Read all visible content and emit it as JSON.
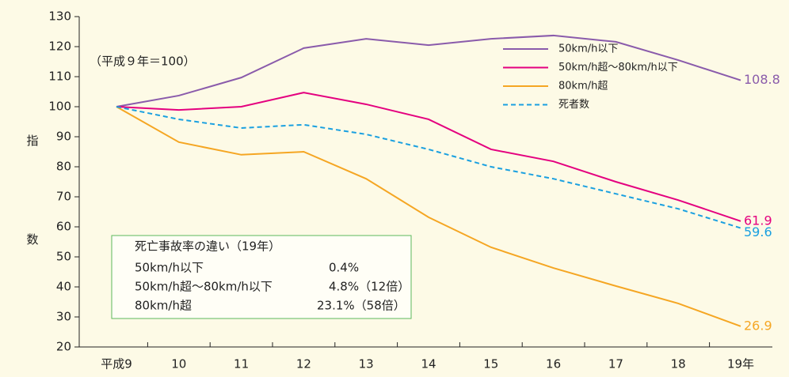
{
  "chart_data": {
    "type": "line",
    "categories": [
      "平成9",
      "10",
      "11",
      "12",
      "13",
      "14",
      "15",
      "16",
      "17",
      "18",
      "19年"
    ],
    "ylim": [
      20,
      130
    ],
    "yticks": [
      20,
      30,
      40,
      50,
      60,
      70,
      80,
      90,
      100,
      110,
      120,
      130
    ],
    "ylabel": "指数",
    "annotation": "（平成９年＝100）",
    "legend": "upper right",
    "series": [
      {
        "name": "50km/h以下",
        "color": "#8a5bab",
        "dashed": false,
        "values": [
          100,
          103.7,
          109.7,
          119.5,
          122.6,
          120.5,
          122.6,
          123.7,
          121.6,
          115.5,
          108.8
        ]
      },
      {
        "name": "50km/h超～80km/h以下",
        "color": "#e4007f",
        "dashed": false,
        "values": [
          100,
          98.9,
          100,
          104.7,
          100.8,
          95.8,
          85.8,
          81.8,
          75,
          68.9,
          61.9
        ]
      },
      {
        "name": "80km/h超",
        "color": "#f5a623",
        "dashed": false,
        "values": [
          100,
          88.2,
          84,
          85,
          76,
          63.2,
          53.2,
          46.3,
          40.3,
          34.5,
          26.9
        ]
      },
      {
        "name": "死者数",
        "color": "#1aa0e0",
        "dashed": true,
        "values": [
          100,
          95.8,
          92.9,
          94,
          90.8,
          85.8,
          80,
          76,
          71,
          66,
          59.6
        ]
      }
    ],
    "box": {
      "title": "死亡事故率の違い（19年）",
      "rows": [
        [
          "50km/h以下",
          "0.4%"
        ],
        [
          "50km/h超～80km/h以下",
          "4.8%（12倍）"
        ],
        [
          "80km/h超",
          "23.1%（58倍）"
        ]
      ]
    }
  }
}
